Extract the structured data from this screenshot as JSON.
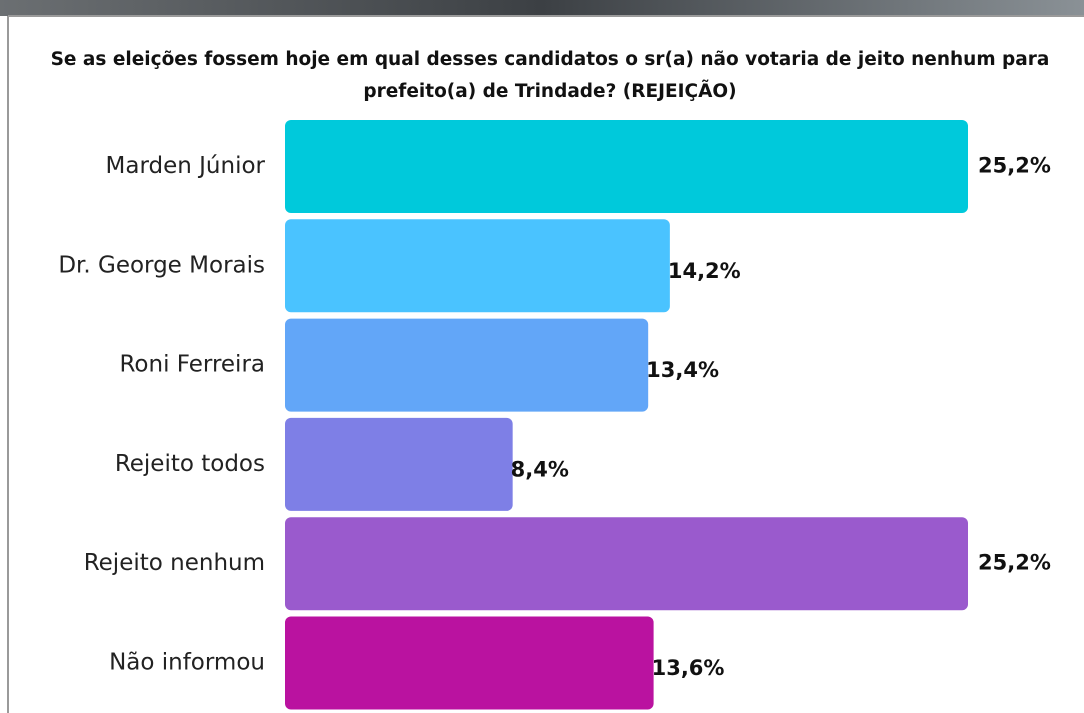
{
  "chart_data": {
    "type": "bar",
    "orientation": "horizontal",
    "title": "Se as eleições fossem hoje em qual desses candidatos o sr(a) não votaria de jeito nenhum para prefeito(a) de Trindade? (REJEIÇÃO)",
    "categories": [
      "Marden Júnior",
      "Dr. George Morais",
      "Roni Ferreira",
      "Rejeito todos",
      "Rejeito nenhum",
      "Não informou"
    ],
    "values": [
      25.2,
      14.2,
      13.4,
      8.4,
      25.2,
      13.6
    ],
    "value_labels": [
      "25,2%",
      "14,2%",
      "13,4%",
      "8,4%",
      "25,2%",
      "13,6%"
    ],
    "colors": [
      "#00c9db",
      "#4ac3ff",
      "#62a6f8",
      "#7e7fe6",
      "#9a5acd",
      "#ba12a0"
    ]
  }
}
